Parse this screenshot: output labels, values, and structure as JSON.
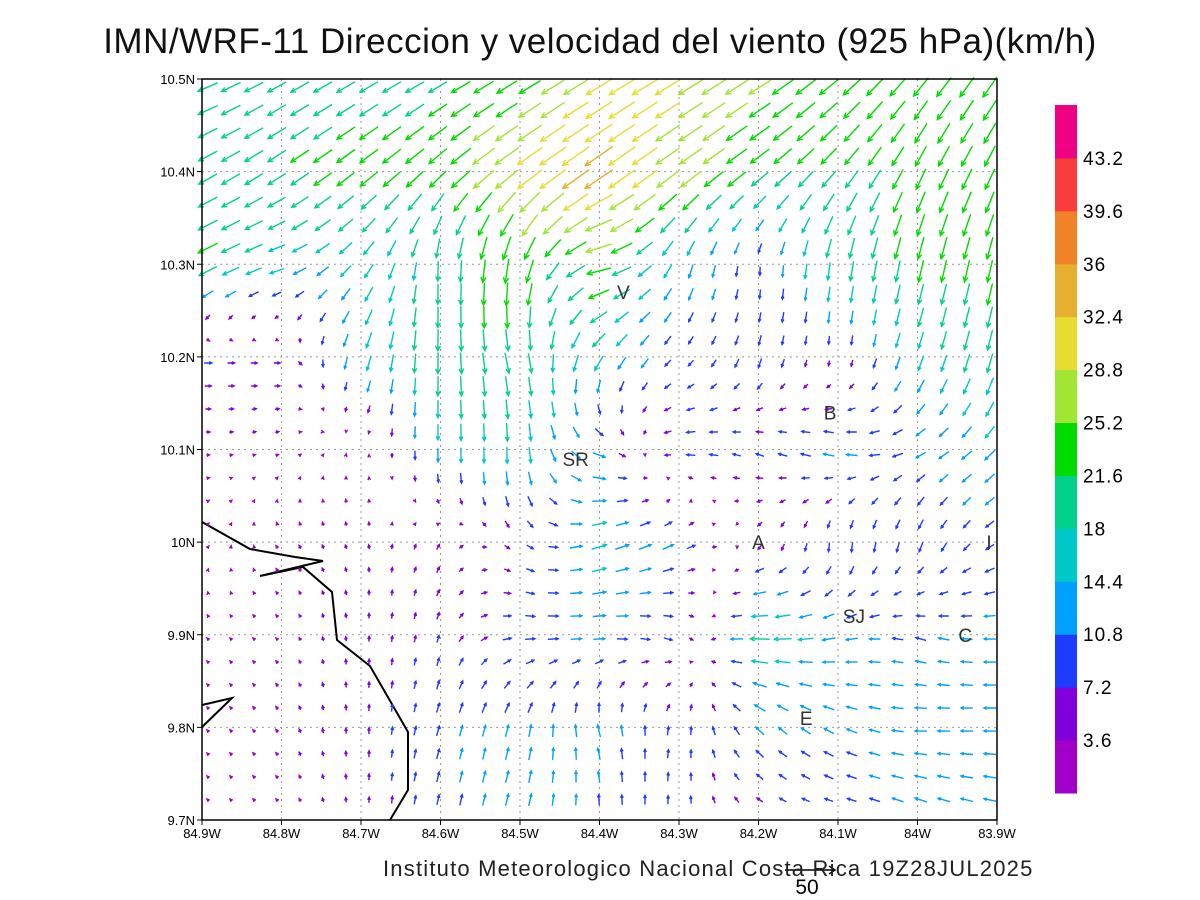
{
  "title": "IMN/WRF-11 Direccion y velocidad del viento (925 hPa)(km/h)",
  "footer": "Instituto Meteorologico Nacional Costa Rica  19Z28JUL2025",
  "reference_vector": {
    "value": 50,
    "label": "50"
  },
  "axes": {
    "lon_range": [
      -84.9,
      -83.9
    ],
    "lat_range": [
      9.7,
      10.5
    ],
    "lon_labels": [
      "84.9W",
      "84.8W",
      "84.7W",
      "84.6W",
      "84.5W",
      "84.4W",
      "84.3W",
      "84.2W",
      "84.1W",
      "84W",
      "83.9W"
    ],
    "lat_labels": [
      "10.5N",
      "10.4N",
      "10.3N",
      "10.2N",
      "10.1N",
      "10N",
      "9.9N",
      "9.8N",
      "9.7N"
    ]
  },
  "colorbar": {
    "levels": [
      "3.6",
      "7.2",
      "10.8",
      "14.4",
      "18",
      "21.6",
      "25.2",
      "28.8",
      "32.4",
      "36",
      "39.6",
      "43.2"
    ],
    "thresholds": [
      3.6,
      7.2,
      10.8,
      14.4,
      18,
      21.6,
      25.2,
      28.8,
      32.4,
      36,
      39.6,
      43.2
    ],
    "colors": [
      "#a000c8",
      "#8200dc",
      "#1e3cff",
      "#00a0ff",
      "#00c8c8",
      "#00d28c",
      "#00dc00",
      "#a0e632",
      "#e6dc32",
      "#e6af2d",
      "#f08228",
      "#fa3c3c",
      "#f00082"
    ]
  },
  "places": [
    {
      "label": "V",
      "lon": -84.37,
      "lat": 10.27
    },
    {
      "label": "B",
      "lon": -84.11,
      "lat": 10.14
    },
    {
      "label": "SR",
      "lon": -84.43,
      "lat": 10.09
    },
    {
      "label": "A",
      "lon": -84.2,
      "lat": 10.0
    },
    {
      "label": "I",
      "lon": -83.91,
      "lat": 10.0
    },
    {
      "label": "SJ",
      "lon": -84.08,
      "lat": 9.92
    },
    {
      "label": "C",
      "lon": -83.94,
      "lat": 9.9
    },
    {
      "label": "E",
      "lon": -84.14,
      "lat": 9.81
    }
  ],
  "wind_field": {
    "units": "km/h",
    "lons": [
      -84.9,
      -84.8,
      -84.7,
      -84.6,
      -84.5,
      -84.4,
      -84.3,
      -84.2,
      -84.1,
      -84.0,
      -83.9
    ],
    "lats": [
      10.5,
      10.4,
      10.3,
      10.2,
      10.1,
      10.0,
      9.9,
      9.8,
      9.7
    ],
    "u": [
      [
        -20,
        -18,
        -18,
        -18,
        -20,
        -25,
        -25,
        -22,
        -18,
        -15,
        -14
      ],
      [
        -18,
        -18,
        -18,
        -18,
        -25,
        -28,
        -22,
        -18,
        -14,
        -10,
        -10
      ],
      [
        -20,
        -15,
        -10,
        0,
        -5,
        -25,
        -5,
        0,
        -3,
        -5,
        -5
      ],
      [
        8,
        6,
        -5,
        0,
        5,
        -10,
        -5,
        -3,
        0,
        -5,
        -5
      ],
      [
        3,
        3,
        0,
        0,
        0,
        12,
        -10,
        -8,
        -12,
        -10,
        -10
      ],
      [
        2,
        -2,
        -1,
        3,
        5,
        15,
        10,
        -3,
        0,
        -3,
        -8
      ],
      [
        -2,
        -2,
        0,
        2,
        10,
        12,
        8,
        -20,
        -12,
        -10,
        -12
      ],
      [
        -2,
        -2,
        0,
        3,
        3,
        -3,
        2,
        -8,
        -10,
        -12,
        -12
      ],
      [
        -2,
        -2,
        0,
        2,
        3,
        0,
        0,
        -5,
        -8,
        -12,
        -12
      ]
    ],
    "v": [
      [
        -8,
        -10,
        -10,
        -10,
        -12,
        -15,
        -15,
        -14,
        -15,
        -18,
        -20
      ],
      [
        -10,
        -12,
        -14,
        -16,
        -18,
        -20,
        -16,
        -14,
        -16,
        -20,
        -20
      ],
      [
        -10,
        -5,
        -12,
        -20,
        -25,
        -5,
        -15,
        -8,
        -20,
        -22,
        -22
      ],
      [
        0,
        0,
        -15,
        -22,
        -20,
        -15,
        -5,
        -10,
        -5,
        -15,
        -20
      ],
      [
        0,
        1,
        2,
        -15,
        -18,
        -5,
        0,
        3,
        3,
        -5,
        -10
      ],
      [
        2,
        3,
        4,
        5,
        -5,
        5,
        5,
        -5,
        -10,
        -10,
        -5
      ],
      [
        2,
        2,
        5,
        7,
        0,
        0,
        -3,
        0,
        -3,
        3,
        0
      ],
      [
        2,
        3,
        6,
        10,
        12,
        12,
        8,
        8,
        5,
        0,
        0
      ],
      [
        2,
        2,
        5,
        10,
        12,
        10,
        8,
        3,
        2,
        5,
        3
      ]
    ]
  }
}
